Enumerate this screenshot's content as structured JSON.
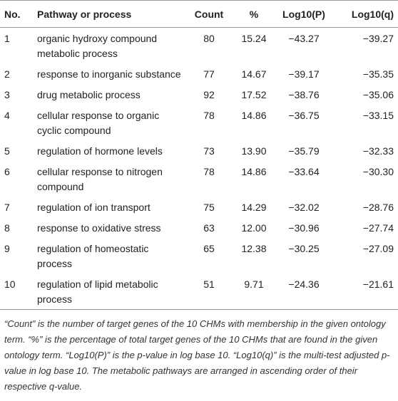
{
  "table": {
    "header": [
      "No.",
      "Pathway or process",
      "Count",
      "%",
      "Log10(P)",
      "Log10(q)"
    ],
    "rows": [
      [
        "1",
        "organic hydroxy compound metabolic process",
        "80",
        "15.24",
        "−43.27",
        "−39.27"
      ],
      [
        "2",
        "response to inorganic substance",
        "77",
        "14.67",
        "−39.17",
        "−35.35"
      ],
      [
        "3",
        "drug metabolic process",
        "92",
        "17.52",
        "−38.76",
        "−35.06"
      ],
      [
        "4",
        "cellular response to organic cyclic compound",
        "78",
        "14.86",
        "−36.75",
        "−33.15"
      ],
      [
        "5",
        "regulation of hormone levels",
        "73",
        "13.90",
        "−35.79",
        "−32.33"
      ],
      [
        "6",
        "cellular response to nitrogen compound",
        "78",
        "14.86",
        "−33.64",
        "−30.30"
      ],
      [
        "7",
        "regulation of ion transport",
        "75",
        "14.29",
        "−32.02",
        "−28.76"
      ],
      [
        "8",
        "response to oxidative stress",
        "63",
        "12.00",
        "−30.96",
        "−27.74"
      ],
      [
        "9",
        "regulation of homeostatic process",
        "65",
        "12.38",
        "−30.25",
        "−27.09"
      ],
      [
        "10",
        "regulation of lipid metabolic process",
        "51",
        "9.71",
        "−24.36",
        "−21.61"
      ]
    ]
  },
  "note": "“Count” is the number of target genes of the 10 CHMs with membership in the given ontology term. “%” is the percentage of total target genes of the 10 CHMs that are found in the given ontology term. “Log10(P)” is the p-value in log base 10. “Log10(q)” is the multi-test adjusted p-value in log base 10. The metabolic pathways are arranged in ascending order of their respective q-value."
}
